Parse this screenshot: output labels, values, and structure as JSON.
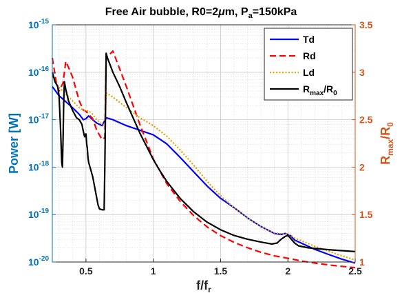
{
  "chart_data": {
    "type": "line",
    "title_prefix": "Free Air bubble, R0=2",
    "title_mu": "μ",
    "title_mid": "m, P",
    "title_sub": "a",
    "title_suffix": "=150kPa",
    "xlabel": "f/f",
    "xlabel_sub": "r",
    "ylabel_left": "Power [W]",
    "ylabel_right_main": "R",
    "ylabel_right_sub1": "max",
    "ylabel_right_mid": "/R",
    "ylabel_right_sub2": "0",
    "xlim": [
      0.25,
      2.5
    ],
    "ylim_left": [
      1e-20,
      1e-15
    ],
    "ylim_right": [
      1,
      3.5
    ],
    "y_left_scale": "log",
    "x_ticks": [
      {
        "v": 0.5,
        "label": "0.5"
      },
      {
        "v": 1,
        "label": "1"
      },
      {
        "v": 1.5,
        "label": "1.5"
      },
      {
        "v": 2,
        "label": "2"
      },
      {
        "v": 2.5,
        "label": "2.5"
      }
    ],
    "y_left_ticks": [
      {
        "exp": -20,
        "base": "10",
        "sup": "-20"
      },
      {
        "exp": -19,
        "base": "10",
        "sup": "-19"
      },
      {
        "exp": -18,
        "base": "10",
        "sup": "-18"
      },
      {
        "exp": -17,
        "base": "10",
        "sup": "-17"
      },
      {
        "exp": -16,
        "base": "10",
        "sup": "-16"
      },
      {
        "exp": -15,
        "base": "10",
        "sup": "-15"
      }
    ],
    "y_right_ticks": [
      {
        "v": 1,
        "label": "1"
      },
      {
        "v": 1.5,
        "label": "1.5"
      },
      {
        "v": 2,
        "label": "2"
      },
      {
        "v": 2.5,
        "label": "2.5"
      },
      {
        "v": 3,
        "label": "3"
      },
      {
        "v": 3.5,
        "label": "3.5"
      }
    ],
    "grid": true,
    "legend_position": "top-right",
    "colors": {
      "left_axis": "#0072BD",
      "right_axis": "#D95319"
    },
    "series": [
      {
        "name": "Td",
        "axis": "left",
        "color": "#0000FF",
        "dash": "solid",
        "x": [
          0.25,
          0.3,
          0.35,
          0.4,
          0.45,
          0.48,
          0.5,
          0.52,
          0.55,
          0.58,
          0.62,
          0.65,
          0.7,
          0.8,
          0.9,
          1.0,
          1.1,
          1.2,
          1.3,
          1.4,
          1.5,
          1.6,
          1.7,
          1.8,
          1.9,
          1.95,
          1.98,
          2.02,
          2.05,
          2.1,
          2.2,
          2.3,
          2.4,
          2.5
        ],
        "y": [
          5e-17,
          3.2e-17,
          2.4e-17,
          1.8e-17,
          1.3e-17,
          1e-17,
          1.05e-17,
          1.2e-17,
          1e-17,
          8.5e-18,
          7.5e-18,
          1.1e-17,
          1e-17,
          7.5e-18,
          6e-18,
          4.8e-18,
          3.1e-18,
          1.6e-18,
          8e-19,
          4e-19,
          2.2e-19,
          1.4e-19,
          8.5e-20,
          5.6e-20,
          4e-20,
          3.8e-20,
          4e-20,
          3.6e-20,
          2.9e-20,
          2.5e-20,
          1.85e-20,
          1.45e-20,
          1.15e-20,
          9.5e-21
        ]
      },
      {
        "name": "Rd",
        "axis": "left",
        "color": "#FF0000",
        "dash": "dashed",
        "x": [
          0.25,
          0.28,
          0.3,
          0.33,
          0.35,
          0.38,
          0.4,
          0.43,
          0.45,
          0.48,
          0.5,
          0.52,
          0.55,
          0.58,
          0.62,
          0.64,
          0.65,
          0.7,
          0.8,
          0.9,
          1.0,
          1.1,
          1.2,
          1.3,
          1.4,
          1.5,
          1.6,
          1.7,
          1.8,
          1.9,
          2.0,
          2.1,
          2.2,
          2.3,
          2.4,
          2.5
        ],
        "y": [
          2e-16,
          6e-17,
          4e-17,
          6e-17,
          1.7e-16,
          1.1e-16,
          8e-17,
          4e-17,
          2.5e-17,
          1.6e-17,
          1.5e-17,
          1.3e-17,
          1.05e-17,
          6e-18,
          3.8e-18,
          4.2e-18,
          2e-16,
          2.8e-16,
          5e-17,
          8e-18,
          1.5e-18,
          4.5e-19,
          1.9e-19,
          9.5e-20,
          5.5e-20,
          3.6e-20,
          2.6e-20,
          2e-20,
          1.6e-20,
          1.35e-20,
          1.2e-20,
          1.05e-20,
          9.5e-21,
          8.7e-21,
          8.1e-21,
          7.6e-21
        ]
      },
      {
        "name": "Ld",
        "axis": "left",
        "color": "#E69F00",
        "dash": "dotted",
        "x": [
          0.25,
          0.3,
          0.35,
          0.4,
          0.45,
          0.5,
          0.52,
          0.55,
          0.58,
          0.62,
          0.64,
          0.65,
          0.7,
          0.8,
          0.9,
          1.0,
          1.1,
          1.2,
          1.3,
          1.4,
          1.5,
          1.6,
          1.7,
          1.8,
          1.9,
          1.95,
          1.98,
          2.02,
          2.05,
          2.1,
          2.2,
          2.3,
          2.4,
          2.5
        ],
        "y": [
          8e-17,
          4.8e-17,
          3.5e-17,
          2.5e-17,
          1.8e-17,
          1.5e-17,
          1.55e-17,
          1.3e-17,
          1e-17,
          8e-18,
          7.8e-18,
          3.7e-17,
          3e-17,
          1.8e-17,
          1.1e-17,
          7.5e-18,
          4.5e-18,
          2.3e-18,
          1.1e-18,
          5e-19,
          2.5e-19,
          1.4e-19,
          8.5e-20,
          5.6e-20,
          4.1e-20,
          3.9e-20,
          4e-20,
          3.7e-20,
          3.2e-20,
          2.8e-20,
          2.15e-20,
          1.7e-20,
          1.35e-20,
          1.1e-20
        ]
      },
      {
        "name": "R_max/R_0",
        "legend_main": "R",
        "legend_sub1": "max",
        "legend_mid": "/R",
        "legend_sub2": "0",
        "axis": "right",
        "color": "#000000",
        "dash": "solid",
        "x": [
          0.25,
          0.27,
          0.29,
          0.3,
          0.31,
          0.32,
          0.325,
          0.33,
          0.335,
          0.34,
          0.35,
          0.37,
          0.4,
          0.43,
          0.45,
          0.47,
          0.48,
          0.49,
          0.5,
          0.505,
          0.51,
          0.515,
          0.52,
          0.53,
          0.55,
          0.57,
          0.59,
          0.6,
          0.62,
          0.635,
          0.64,
          0.645,
          0.65,
          0.66,
          0.7,
          0.75,
          0.8,
          0.85,
          0.9,
          0.95,
          1.0,
          1.05,
          1.1,
          1.2,
          1.3,
          1.4,
          1.5,
          1.6,
          1.7,
          1.8,
          1.88,
          1.92,
          1.95,
          1.98,
          2.0,
          2.02,
          2.05,
          2.08,
          2.15,
          2.3,
          2.5
        ],
        "y": [
          3.0,
          2.9,
          2.85,
          2.75,
          2.45,
          2.05,
          2.0,
          2.3,
          2.7,
          2.9,
          2.82,
          2.7,
          2.6,
          2.52,
          2.5,
          2.45,
          2.38,
          2.32,
          2.35,
          2.25,
          2.2,
          2.1,
          2.05,
          2.0,
          1.9,
          1.75,
          1.6,
          1.56,
          1.55,
          1.55,
          2.0,
          2.55,
          3.2,
          3.15,
          3.0,
          2.85,
          2.68,
          2.52,
          2.36,
          2.22,
          2.08,
          1.96,
          1.85,
          1.67,
          1.53,
          1.42,
          1.34,
          1.28,
          1.24,
          1.21,
          1.19,
          1.2,
          1.24,
          1.27,
          1.28,
          1.25,
          1.2,
          1.17,
          1.15,
          1.13,
          1.11
        ]
      }
    ]
  }
}
